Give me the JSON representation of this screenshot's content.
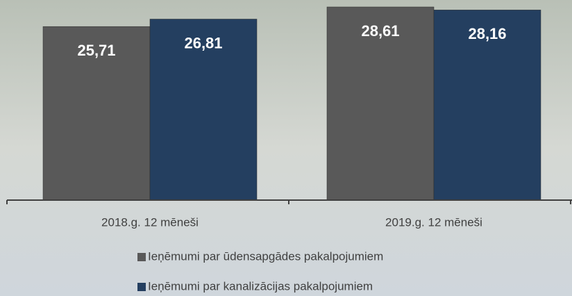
{
  "chart_data": {
    "type": "bar",
    "categories": [
      "2018.g. 12 mēneši",
      "2019.g. 12 mēneši"
    ],
    "series": [
      {
        "name": "Ieņēmumi par ūdensapgādes pakalpojumiem",
        "color": "#595959",
        "values": [
          25.71,
          28.61
        ],
        "value_labels": [
          "25,71",
          "28,61"
        ]
      },
      {
        "name": "Ieņēmumi par kanalizācijas pakalpojumiem",
        "color": "#243f60",
        "values": [
          26.81,
          28.16
        ],
        "value_labels": [
          "26,81",
          "28,16"
        ]
      }
    ]
  }
}
